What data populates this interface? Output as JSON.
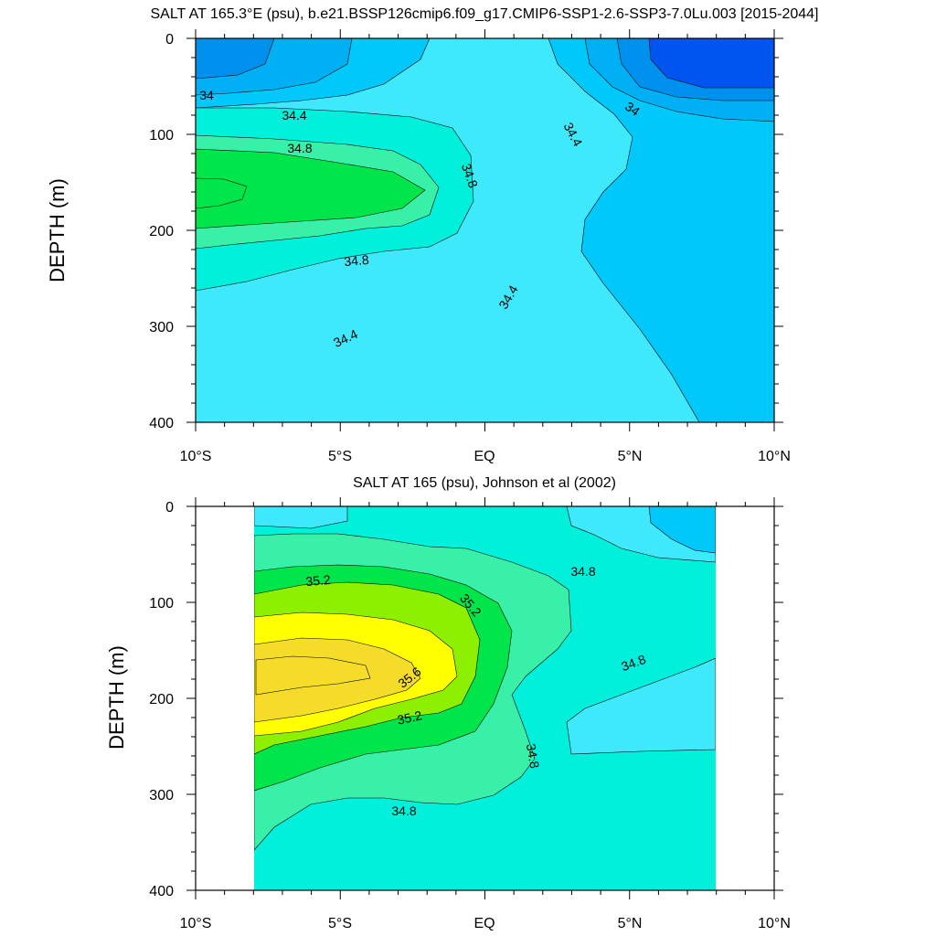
{
  "figure": {
    "panels": [
      {
        "title": "SALT AT 165.3°E (psu), b.e21.BSSP126cmip6.f09_g17.CMIP6-SSP1-2.6-SSP3-7.0Lu.003 [2015-2044]",
        "ylabel": "DEPTH (m)",
        "yticks": [
          "0",
          "100",
          "200",
          "300",
          "400"
        ],
        "xticks": [
          "10°S",
          "5°S",
          "EQ",
          "5°N",
          "10°N"
        ],
        "contour_labels": [
          "34",
          "34.4",
          "34.8",
          "34.8",
          "34.8",
          "34.4",
          "34.4",
          "34.4",
          "34"
        ]
      },
      {
        "title": "SALT AT 165 (psu), Johnson et al (2002)",
        "ylabel": "DEPTH (m)",
        "yticks": [
          "0",
          "100",
          "200",
          "300",
          "400"
        ],
        "xticks": [
          "10°S",
          "5°S",
          "EQ",
          "5°N",
          "10°N"
        ],
        "contour_labels": [
          "35.2",
          "35.2",
          "34.8",
          "35.6",
          "34.8",
          "35.2",
          "34.8",
          "34.8"
        ]
      }
    ],
    "colors": {
      "c33_8": "#0055f0",
      "c34_0": "#0091ee",
      "c34_2": "#00aff4",
      "c34_4": "#00c8fa",
      "c34_6": "#3ee9fb",
      "c34_8": "#00f0dc",
      "c35_0": "#39f0a8",
      "c35_2": "#00e64a",
      "c35_4": "#8cf000",
      "c35_6": "#ffff00",
      "c35_8": "#f5dc28"
    }
  },
  "chart_data": [
    {
      "type": "contour",
      "title": "SALT AT 165.3°E (psu), b.e21.BSSP126cmip6.f09_g17.CMIP6-SSP1-2.6-SSP3-7.0Lu.003 [2015-2044]",
      "xlabel": "",
      "ylabel": "DEPTH (m)",
      "xlim": [
        -10,
        10
      ],
      "ylim": [
        400,
        0
      ],
      "x_ticks": [
        -10,
        -5,
        0,
        5,
        10
      ],
      "x_tick_labels": [
        "10°S",
        "5°S",
        "EQ",
        "5°N",
        "10°N"
      ],
      "y_ticks": [
        0,
        100,
        200,
        300,
        400
      ],
      "contour_levels_labeled": [
        34,
        34.4,
        34.8
      ],
      "contour_labels": [
        {
          "text": "34",
          "lat": -9.6,
          "depth": 55
        },
        {
          "text": "34.4",
          "lat": -6.6,
          "depth": 73
        },
        {
          "text": "34.8",
          "lat": -6.3,
          "depth": 110
        },
        {
          "text": "34.8",
          "lat": -0.6,
          "depth": 140
        },
        {
          "text": "34.8",
          "lat": -4.4,
          "depth": 228
        },
        {
          "text": "34.4",
          "lat": 0.8,
          "depth": 265
        },
        {
          "text": "34.4",
          "lat": -4.9,
          "depth": 305
        },
        {
          "text": "34.4",
          "lat": 3.0,
          "depth": 95
        },
        {
          "text": "34",
          "lat": 5.2,
          "depth": 70
        }
      ]
    },
    {
      "type": "contour",
      "title": "SALT AT 165 (psu), Johnson et al (2002)",
      "xlabel": "",
      "ylabel": "DEPTH (m)",
      "xlim": [
        -10,
        10
      ],
      "ylim": [
        400,
        0
      ],
      "data_lat_range": [
        -8,
        8
      ],
      "x_ticks": [
        -10,
        -5,
        0,
        5,
        10
      ],
      "x_tick_labels": [
        "10°S",
        "5°S",
        "EQ",
        "5°N",
        "10°N"
      ],
      "y_ticks": [
        0,
        100,
        200,
        300,
        400
      ],
      "contour_levels_labeled": [
        34.8,
        35.2,
        35.6
      ],
      "contour_labels": [
        {
          "text": "35.2",
          "lat": -5.8,
          "depth": 75
        },
        {
          "text": "35.2",
          "lat": -0.5,
          "depth": 105
        },
        {
          "text": "34.8",
          "lat": 3.4,
          "depth": 63
        },
        {
          "text": "35.6",
          "lat": -2.7,
          "depth": 180
        },
        {
          "text": "34.8",
          "lat": 5.2,
          "depth": 160
        },
        {
          "text": "35.2",
          "lat": -2.7,
          "depth": 220
        },
        {
          "text": "34.8",
          "lat": 1.6,
          "depth": 250
        },
        {
          "text": "34.8",
          "lat": -2.8,
          "depth": 315
        }
      ]
    }
  ]
}
